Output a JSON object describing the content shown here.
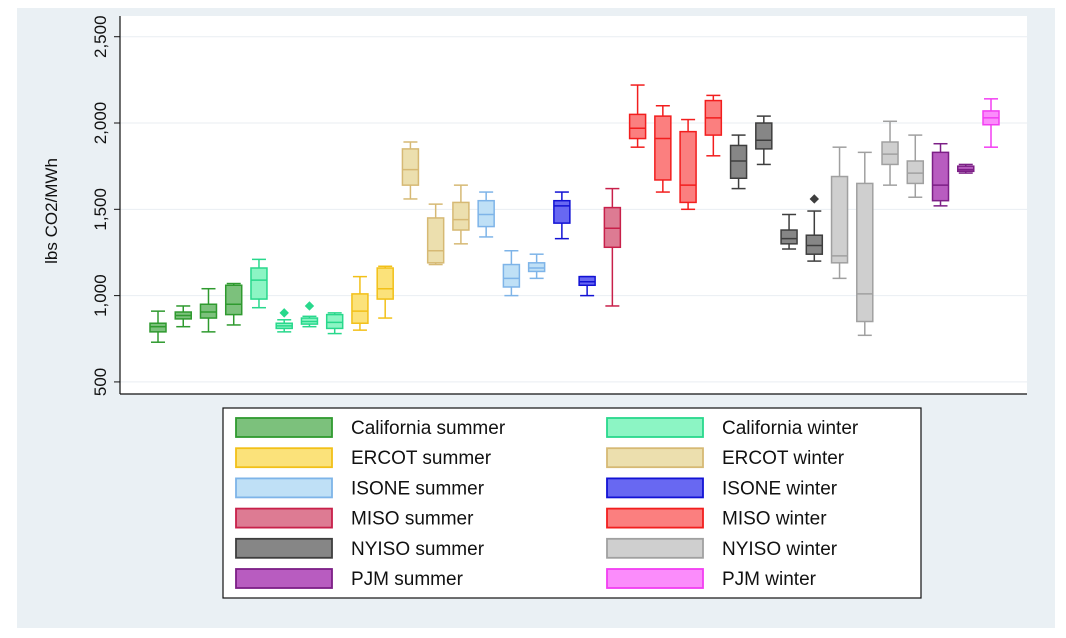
{
  "chart_data": {
    "type": "box",
    "title": "",
    "ylabel": "lbs CO2/MWh",
    "xlabel": "",
    "ylim": [
      430,
      2620
    ],
    "yticks": [
      500,
      1000,
      1500,
      2000,
      2500
    ],
    "ytick_labels": [
      "500",
      "1,000",
      "1,500",
      "2,000",
      "2,500"
    ],
    "grid": true,
    "legend_position": "bottom",
    "series": [
      {
        "name": "California summer",
        "color": "#2f9a2f",
        "fill": "#7cc17c",
        "boxes": [
          {
            "min": 730,
            "q1": 790,
            "median": 820,
            "q3": 840,
            "max": 910
          },
          {
            "min": 820,
            "q1": 865,
            "median": 885,
            "q3": 905,
            "max": 940
          },
          {
            "min": 790,
            "q1": 870,
            "median": 905,
            "q3": 950,
            "max": 1040
          },
          {
            "min": 830,
            "q1": 890,
            "median": 950,
            "q3": 1060,
            "max": 1070
          }
        ]
      },
      {
        "name": "California winter",
        "color": "#28d88c",
        "fill": "#8cf5c4",
        "boxes": [
          {
            "min": 930,
            "q1": 980,
            "median": 1090,
            "q3": 1160,
            "max": 1210
          },
          {
            "min": 790,
            "q1": 810,
            "median": 825,
            "q3": 840,
            "max": 860,
            "outliers": [
              900
            ]
          },
          {
            "min": 820,
            "q1": 835,
            "median": 850,
            "q3": 870,
            "max": 880,
            "outliers": [
              940
            ]
          },
          {
            "min": 780,
            "q1": 810,
            "median": 845,
            "q3": 890,
            "max": 900
          }
        ]
      },
      {
        "name": "ERCOT summer",
        "color": "#f2c018",
        "fill": "#fbe27a",
        "boxes": [
          {
            "min": 800,
            "q1": 840,
            "median": 910,
            "q3": 1010,
            "max": 1110
          },
          {
            "min": 870,
            "q1": 980,
            "median": 1040,
            "q3": 1160,
            "max": 1170
          }
        ]
      },
      {
        "name": "ERCOT winter",
        "color": "#d6b974",
        "fill": "#ecdfae",
        "boxes": [
          {
            "min": 1560,
            "q1": 1640,
            "median": 1730,
            "q3": 1850,
            "max": 1890
          },
          {
            "min": 1180,
            "q1": 1190,
            "median": 1260,
            "q3": 1450,
            "max": 1530
          },
          {
            "min": 1300,
            "q1": 1380,
            "median": 1440,
            "q3": 1540,
            "max": 1640
          }
        ]
      },
      {
        "name": "ISONE summer",
        "color": "#7eb4e8",
        "fill": "#bfe0f6",
        "boxes": [
          {
            "min": 1340,
            "q1": 1400,
            "median": 1470,
            "q3": 1550,
            "max": 1600
          },
          {
            "min": 1000,
            "q1": 1050,
            "median": 1100,
            "q3": 1180,
            "max": 1260
          },
          {
            "min": 1100,
            "q1": 1140,
            "median": 1160,
            "q3": 1190,
            "max": 1240
          }
        ]
      },
      {
        "name": "ISONE winter",
        "color": "#1212d4",
        "fill": "#6868f2",
        "boxes": [
          {
            "min": 1330,
            "q1": 1420,
            "median": 1520,
            "q3": 1550,
            "max": 1600
          },
          {
            "min": 1000,
            "q1": 1060,
            "median": 1080,
            "q3": 1110,
            "max": 1110
          }
        ]
      },
      {
        "name": "MISO summer",
        "color": "#c8204a",
        "fill": "#dd7b93",
        "boxes": [
          {
            "min": 940,
            "q1": 1280,
            "median": 1390,
            "q3": 1510,
            "max": 1620
          }
        ]
      },
      {
        "name": "MISO winter",
        "color": "#f21e1e",
        "fill": "#fb7f7f",
        "boxes": [
          {
            "min": 1860,
            "q1": 1910,
            "median": 1970,
            "q3": 2050,
            "max": 2220
          },
          {
            "min": 1600,
            "q1": 1670,
            "median": 1910,
            "q3": 2040,
            "max": 2100
          },
          {
            "min": 1500,
            "q1": 1540,
            "median": 1640,
            "q3": 1950,
            "max": 2020
          },
          {
            "min": 1810,
            "q1": 1930,
            "median": 2030,
            "q3": 2130,
            "max": 2160
          }
        ]
      },
      {
        "name": "NYISO summer",
        "color": "#3e3e3e",
        "fill": "#868686",
        "boxes": [
          {
            "min": 1620,
            "q1": 1680,
            "median": 1780,
            "q3": 1870,
            "max": 1930
          },
          {
            "min": 1760,
            "q1": 1850,
            "median": 1900,
            "q3": 2000,
            "max": 2040
          },
          {
            "min": 1270,
            "q1": 1300,
            "median": 1330,
            "q3": 1380,
            "max": 1470
          },
          {
            "min": 1200,
            "q1": 1240,
            "median": 1290,
            "q3": 1350,
            "max": 1490,
            "outliers": [
              1560
            ]
          }
        ]
      },
      {
        "name": "NYISO winter",
        "color": "#a0a0a0",
        "fill": "#cfcfcf",
        "boxes": [
          {
            "min": 1100,
            "q1": 1190,
            "median": 1230,
            "q3": 1690,
            "max": 1860
          },
          {
            "min": 770,
            "q1": 850,
            "median": 1010,
            "q3": 1650,
            "max": 1830
          },
          {
            "min": 1640,
            "q1": 1760,
            "median": 1820,
            "q3": 1890,
            "max": 2010
          },
          {
            "min": 1570,
            "q1": 1650,
            "median": 1710,
            "q3": 1780,
            "max": 1930
          }
        ]
      },
      {
        "name": "PJM summer",
        "color": "#7c1f86",
        "fill": "#b85cc0",
        "boxes": [
          {
            "min": 1520,
            "q1": 1550,
            "median": 1640,
            "q3": 1830,
            "max": 1880
          },
          {
            "min": 1710,
            "q1": 1720,
            "median": 1730,
            "q3": 1750,
            "max": 1760
          }
        ]
      },
      {
        "name": "PJM winter",
        "color": "#f23ef2",
        "fill": "#fb8cfb",
        "boxes": [
          {
            "min": 1860,
            "q1": 1990,
            "median": 2030,
            "q3": 2070,
            "max": 2140
          }
        ]
      }
    ],
    "box_order": [
      [
        "California summer",
        0
      ],
      [
        "California summer",
        1
      ],
      [
        "California summer",
        2
      ],
      [
        "California summer",
        3
      ],
      [
        "California winter",
        0
      ],
      [
        "California winter",
        1
      ],
      [
        "California winter",
        2
      ],
      [
        "California winter",
        3
      ],
      [
        "ERCOT summer",
        0
      ],
      [
        "ERCOT summer",
        1
      ],
      [
        "ERCOT winter",
        0
      ],
      [
        "ERCOT winter",
        1
      ],
      [
        "ERCOT winter",
        2
      ],
      [
        "ISONE summer",
        0
      ],
      [
        "ISONE summer",
        1
      ],
      [
        "ISONE summer",
        2
      ],
      [
        "ISONE winter",
        0
      ],
      [
        "ISONE winter",
        1
      ],
      [
        "MISO summer",
        0
      ],
      [
        "MISO winter",
        0
      ],
      [
        "MISO winter",
        1
      ],
      [
        "MISO winter",
        2
      ],
      [
        "MISO winter",
        3
      ],
      [
        "NYISO summer",
        0
      ],
      [
        "NYISO summer",
        1
      ],
      [
        "NYISO summer",
        2
      ],
      [
        "NYISO summer",
        3
      ],
      [
        "NYISO winter",
        0
      ],
      [
        "NYISO winter",
        1
      ],
      [
        "NYISO winter",
        2
      ],
      [
        "NYISO winter",
        3
      ],
      [
        "PJM summer",
        0
      ],
      [
        "PJM summer",
        1
      ],
      [
        "PJM winter",
        0
      ]
    ],
    "legend": [
      [
        "California summer",
        "California winter"
      ],
      [
        "ERCOT summer",
        "ERCOT winter"
      ],
      [
        "ISONE summer",
        "ISONE winter"
      ],
      [
        "MISO summer",
        "MISO winter"
      ],
      [
        "NYISO summer",
        "NYISO winter"
      ],
      [
        "PJM summer",
        "PJM winter"
      ]
    ]
  }
}
